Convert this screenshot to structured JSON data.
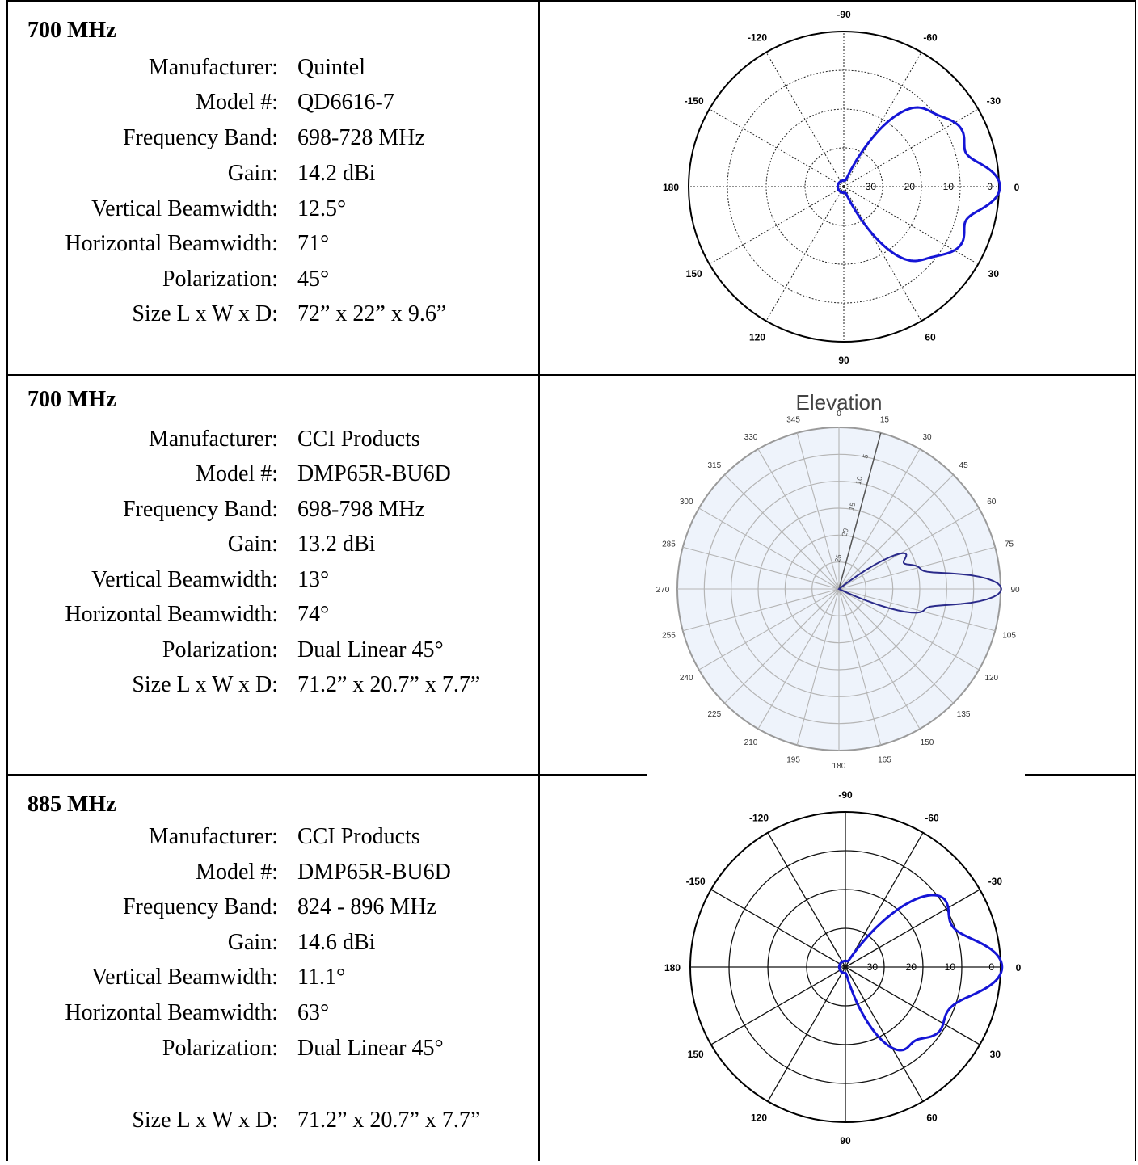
{
  "rows": [
    {
      "band": "700 MHz",
      "specs": [
        {
          "label": "Manufacturer:",
          "value": "Quintel"
        },
        {
          "label": "Model #:",
          "value": "QD6616-7"
        },
        {
          "label": "Frequency Band:",
          "value": "698-728 MHz"
        },
        {
          "label": "Gain:",
          "value": "14.2 dBi"
        },
        {
          "label": "Vertical Beamwidth:",
          "value": "12.5°"
        },
        {
          "label": "Horizontal Beamwidth:",
          "value": "71°"
        },
        {
          "label": "Polarization:",
          "value": "45°"
        },
        {
          "label": "Size L x W x D:",
          "value": "72” x 22” x 9.6”"
        }
      ]
    },
    {
      "band": "700 MHz",
      "specs": [
        {
          "label": "Manufacturer:",
          "value": "CCI Products"
        },
        {
          "label": "Model #:",
          "value": "DMP65R-BU6D"
        },
        {
          "label": "Frequency Band:",
          "value": "698-798 MHz"
        },
        {
          "label": "Gain:",
          "value": "13.2 dBi"
        },
        {
          "label": "Vertical Beamwidth:",
          "value": "13°"
        },
        {
          "label": "Horizontal Beamwidth:",
          "value": "74°"
        },
        {
          "label": "Polarization:",
          "value": "Dual Linear 45°"
        },
        {
          "label": "Size L x W x D:",
          "value": "71.2” x 20.7” x 7.7”"
        }
      ]
    },
    {
      "band": "885 MHz",
      "specs": [
        {
          "label": "Manufacturer:",
          "value": "CCI Products"
        },
        {
          "label": "Model #:",
          "value": "DMP65R-BU6D"
        },
        {
          "label": "Frequency Band:",
          "value": "824 - 896 MHz"
        },
        {
          "label": "Gain:",
          "value": "14.6 dBi"
        },
        {
          "label": "Vertical Beamwidth:",
          "value": "11.1°"
        },
        {
          "label": "Horizontal Beamwidth:",
          "value": "63°"
        },
        {
          "label": "Polarization:",
          "value": "Dual Linear 45°"
        },
        {
          "label": "Size L x W x D:",
          "value": "71.2” x 20.7” x 7.7”"
        }
      ]
    }
  ],
  "chart_data": [
    {
      "type": "polar-line",
      "title": "",
      "angle_labels": [
        "-90",
        "-60",
        "-30",
        "0",
        "30",
        "60",
        "90",
        "120",
        "150",
        "180",
        "-150",
        "-120"
      ],
      "radial_labels": [
        "30",
        "20",
        "10",
        "0"
      ],
      "series_color": "#1515d6",
      "pattern_db": [
        {
          "angle": 0,
          "gain_db": 0
        },
        {
          "angle": -20,
          "gain_db": -14
        },
        {
          "angle": 20,
          "gain_db": -14
        },
        {
          "angle": -28,
          "gain_db": -10
        },
        {
          "angle": 28,
          "gain_db": -10
        },
        {
          "angle": -45,
          "gain_db": -13
        },
        {
          "angle": 45,
          "gain_db": -15
        }
      ]
    },
    {
      "type": "polar-line",
      "title": "Elevation",
      "angle_labels": [
        "0",
        "15",
        "30",
        "45",
        "60",
        "75",
        "90",
        "105",
        "120",
        "135",
        "150",
        "165",
        "180",
        "195",
        "210",
        "225",
        "240",
        "255",
        "270",
        "285",
        "300",
        "315",
        "330",
        "345"
      ],
      "radial_labels": [
        "5",
        "10",
        "15",
        "20",
        "25"
      ],
      "series_color": "#2a2a8a",
      "pattern_db": [
        {
          "angle": 90,
          "gain_db": 0
        },
        {
          "angle": 75,
          "gain_db": -16
        },
        {
          "angle": 105,
          "gain_db": -15
        },
        {
          "angle": 62,
          "gain_db": -17
        }
      ]
    },
    {
      "type": "polar-line",
      "title": "",
      "angle_labels": [
        "-90",
        "-60",
        "-30",
        "0",
        "30",
        "60",
        "90",
        "120",
        "150",
        "180",
        "-150",
        "-120"
      ],
      "radial_labels": [
        "30",
        "20",
        "10",
        "0"
      ],
      "series_color": "#1515d6",
      "pattern_db": [
        {
          "angle": 0,
          "gain_db": 0
        },
        {
          "angle": -18,
          "gain_db": -14
        },
        {
          "angle": 18,
          "gain_db": -14
        },
        {
          "angle": -35,
          "gain_db": -10
        },
        {
          "angle": 35,
          "gain_db": -12
        },
        {
          "angle": 55,
          "gain_db": -15
        }
      ]
    }
  ]
}
